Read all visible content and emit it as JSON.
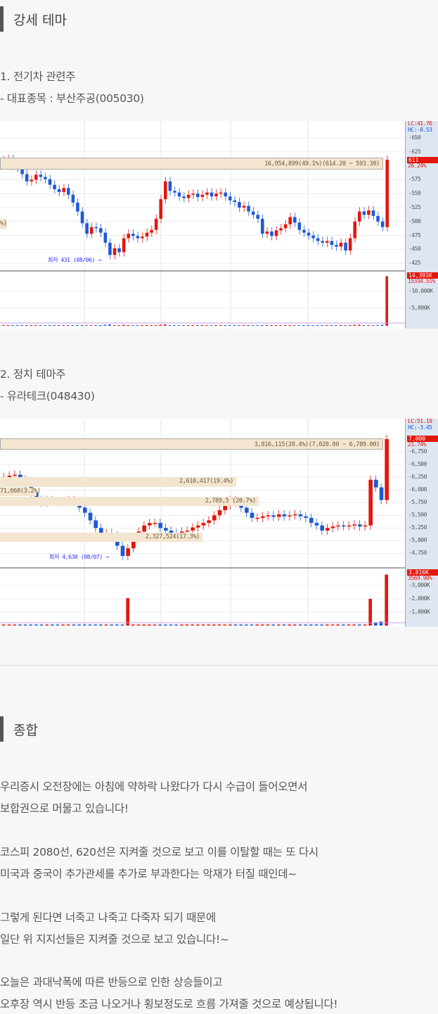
{
  "section1": {
    "title": "강세 테마"
  },
  "theme1": {
    "title": "1. 전기차 관련주",
    "stock": " - 대표종목 : 부산주공(005030)"
  },
  "theme2": {
    "title": "2. 정치 테마주",
    "stock": "- 유라테크(048430)"
  },
  "section2": {
    "title": "종합"
  },
  "paragraphs": [
    [
      "우리증시 오전장에는 아침에 약하락 나왔다가 다시 수급이 들어오면서",
      "보합권으로 머물고 있습니다!"
    ],
    [
      "코스피 2080선, 620선은 지켜줄 것으로 보고 이를 이탈할 때는 또 다시",
      "미국과 중국이 추가관세를 추가로 부과한다는 악재가 터질 때인데~"
    ],
    [
      "그렇게 된다면 너죽고 나죽고 다죽자 되기 때문에",
      "일단 위 지지선들은 지켜줄 것으로 보고 있습니다!~"
    ],
    [
      "오늘은 과대낙폭에 따른 반등으로 인한 상승들이고",
      "오후장 역시 반등 조금 나오거나 횡보정도로 흐름 가져줄 것으로 예상됩니다!"
    ]
  ],
  "colors": {
    "up": "#e3170d",
    "down": "#1e5ad6",
    "band": "#f3e5cf",
    "axis_panel": "#dde6f1"
  },
  "chart_data": [
    {
      "type": "candlestick",
      "stock": "부산주공(005030)",
      "lc": "LC:41.76",
      "hc": "HC:-8.53",
      "price_ticks": [
        650,
        625,
        575,
        550,
        525,
        500,
        475,
        450,
        425
      ],
      "current_price": "611",
      "change": "26.24%",
      "volume_ticks": [
        "10,000K",
        "5,000K"
      ],
      "volume_badge": "14,391K",
      "volume_change": "15334.51%",
      "bands": [
        {
          "label": "16,954,899(49.1%)(614.20 ~ 593.30)",
          "from": 593.3,
          "to": 614.2
        },
        {
          "label": "%)",
          "from": 487,
          "to": 505
        }
      ],
      "low_label": "최저 431 (08/06)",
      "closes": [
        610,
        612,
        600,
        596,
        585,
        572,
        575,
        584,
        580,
        576,
        566,
        558,
        553,
        560,
        548,
        534,
        518,
        497,
        478,
        490,
        488,
        480,
        462,
        440,
        452,
        445,
        470,
        478,
        474,
        470,
        473,
        480,
        485,
        505,
        540,
        572,
        555,
        552,
        545,
        542,
        548,
        550,
        544,
        548,
        552,
        545,
        550,
        552,
        545,
        538,
        535,
        525,
        528,
        518,
        512,
        505,
        478,
        482,
        474,
        484,
        488,
        495,
        508,
        498,
        485,
        480,
        475,
        470,
        465,
        462,
        465,
        458,
        455,
        462,
        448,
        470,
        500,
        518,
        512,
        520,
        510,
        500,
        490,
        611
      ],
      "volumes": [
        200,
        200,
        200,
        200,
        200,
        200,
        200,
        200,
        200,
        200,
        200,
        200,
        200,
        200,
        200,
        200,
        200,
        200,
        200,
        200,
        200,
        200,
        300,
        400,
        200,
        200,
        300,
        200,
        200,
        200,
        200,
        200,
        200,
        200,
        300,
        400,
        200,
        200,
        200,
        200,
        200,
        200,
        200,
        200,
        200,
        200,
        200,
        200,
        200,
        200,
        200,
        200,
        200,
        200,
        200,
        200,
        200,
        200,
        200,
        200,
        200,
        200,
        200,
        200,
        200,
        200,
        200,
        200,
        200,
        200,
        200,
        200,
        200,
        200,
        200,
        200,
        300,
        300,
        200,
        200,
        200,
        200,
        300,
        14391
      ]
    },
    {
      "type": "candlestick",
      "stock": "유라테크(048430)",
      "lc": "LC:51.19",
      "hc": "HC:-3.45",
      "price_ticks": [
        6750,
        6500,
        6250,
        6000,
        5750,
        5500,
        5250,
        5000,
        4750
      ],
      "current_price": "7,000",
      "change": "21.74%",
      "volume_ticks": [
        "3,000K",
        "2,000K",
        "1,000K"
      ],
      "volume_badge": "3,816K",
      "volume_change": "3569.90%",
      "bands": [
        {
          "label": "3,816,115(28.4%)(7,020.00 ~ 6,789.00)",
          "from": 6789,
          "to": 7020
        },
        {
          "label": "2,610,417(19.4%)",
          "from": 6060,
          "to": 6250
        },
        {
          "label": "71,668(3.2%)",
          "from": 5840,
          "to": 6000
        },
        {
          "label": "2,789,5  (20.7%)",
          "from": 5680,
          "to": 5860
        },
        {
          "label": "2,327,524(17.3%)",
          "from": 4980,
          "to": 5160
        }
      ],
      "low_label": "최저 4,630 (08/07)",
      "closes": [
        6250,
        6280,
        6300,
        6200,
        6100,
        5950,
        5800,
        5750,
        5800,
        5770,
        5760,
        5780,
        5800,
        5780,
        5650,
        5550,
        5400,
        5250,
        5100,
        5150,
        5100,
        4900,
        4700,
        4850,
        5050,
        5180,
        5300,
        5350,
        5350,
        5250,
        5200,
        5150,
        5100,
        5180,
        5200,
        5260,
        5300,
        5350,
        5400,
        5500,
        5600,
        5700,
        5800,
        5750,
        5650,
        5550,
        5450,
        5450,
        5480,
        5500,
        5470,
        5520,
        5480,
        5500,
        5520,
        5480,
        5450,
        5350,
        5300,
        5200,
        5250,
        5280,
        5300,
        5290,
        5300,
        5320,
        5280,
        5300,
        6200,
        6050,
        5800,
        7000
      ],
      "volumes": [
        80,
        80,
        80,
        80,
        80,
        80,
        80,
        80,
        80,
        80,
        80,
        80,
        80,
        80,
        80,
        80,
        80,
        80,
        80,
        80,
        80,
        80,
        80,
        2050,
        80,
        80,
        80,
        80,
        80,
        80,
        80,
        80,
        80,
        80,
        80,
        80,
        80,
        80,
        80,
        80,
        80,
        80,
        80,
        80,
        80,
        80,
        80,
        80,
        80,
        80,
        80,
        80,
        80,
        80,
        80,
        80,
        80,
        80,
        80,
        80,
        80,
        80,
        80,
        80,
        80,
        80,
        80,
        80,
        2000,
        250,
        300,
        3816
      ]
    }
  ]
}
